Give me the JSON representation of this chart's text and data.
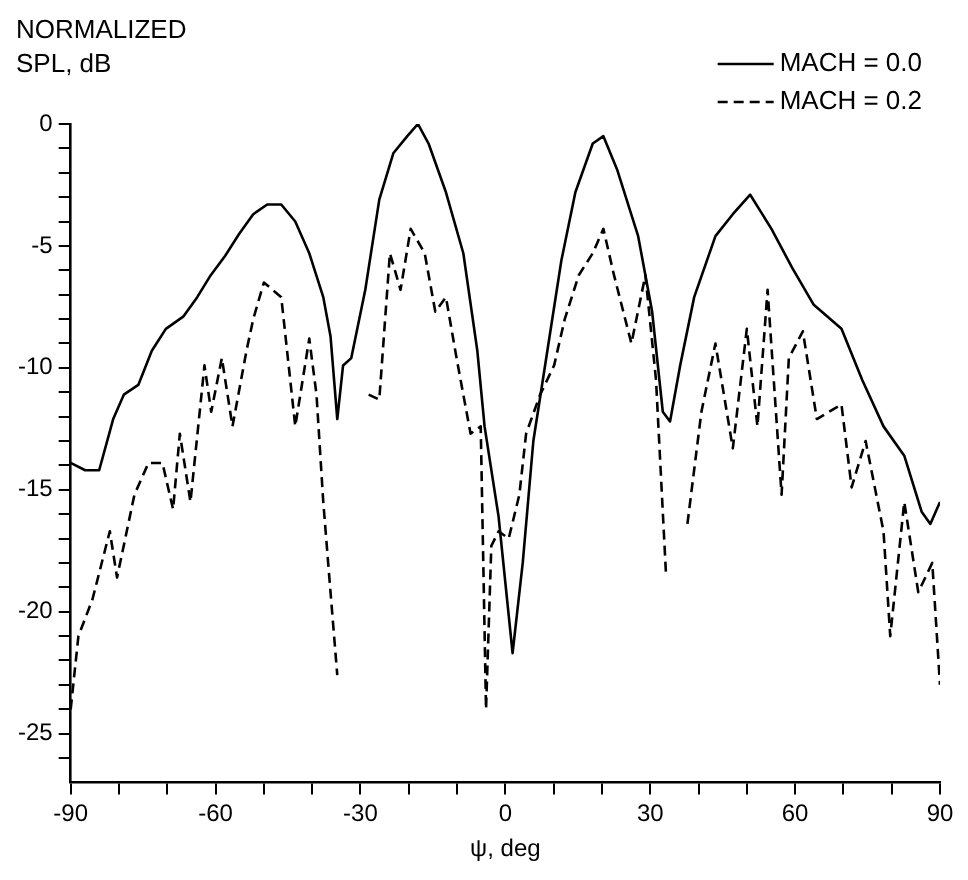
{
  "chart_data": {
    "type": "line",
    "ylabel": "NORMALIZED SPL, dB",
    "xlabel": "ψ, deg",
    "xlim": [
      -90,
      90
    ],
    "ylim": [
      -27,
      0
    ],
    "xticks": [
      -90,
      {
        "value": -80,
        "label": null
      },
      {
        "value": -70,
        "label": null
      },
      -60,
      {
        "value": -50,
        "label": null
      },
      {
        "value": -40,
        "label": null
      },
      -30,
      {
        "value": -20,
        "label": null
      },
      {
        "value": -10,
        "label": null
      },
      0,
      {
        "value": 10,
        "label": null
      },
      {
        "value": 20,
        "label": null
      },
      30,
      {
        "value": 40,
        "label": null
      },
      {
        "value": 50,
        "label": null
      },
      60,
      {
        "value": 70,
        "label": null
      },
      {
        "value": 80,
        "label": null
      },
      90
    ],
    "yticks": [
      0,
      {
        "value": -1,
        "label": null
      },
      {
        "value": -2,
        "label": null
      },
      {
        "value": -3,
        "label": null
      },
      {
        "value": -4,
        "label": null
      },
      -5,
      {
        "value": -6,
        "label": null
      },
      {
        "value": -7,
        "label": null
      },
      {
        "value": -8,
        "label": null
      },
      {
        "value": -9,
        "label": null
      },
      -10,
      {
        "value": -11,
        "label": null
      },
      {
        "value": -12,
        "label": null
      },
      {
        "value": -13,
        "label": null
      },
      {
        "value": -14,
        "label": null
      },
      -15,
      {
        "value": -16,
        "label": null
      },
      {
        "value": -17,
        "label": null
      },
      {
        "value": -18,
        "label": null
      },
      {
        "value": -19,
        "label": null
      },
      -20,
      {
        "value": -21,
        "label": null
      },
      {
        "value": -22,
        "label": null
      },
      {
        "value": -23,
        "label": null
      },
      {
        "value": -24,
        "label": null
      },
      -25,
      {
        "value": -26,
        "label": null
      }
    ],
    "grid": false,
    "legend": "top right",
    "marker": "none",
    "series": [
      {
        "name": "MACH = 0.0",
        "color": "#000000",
        "line_style": "solid",
        "x": [
          -90,
          -87,
          -84.1,
          -81.2,
          -79,
          -76,
          -73.2,
          -70.3,
          -66.7,
          -63.8,
          -61,
          -58,
          -55.1,
          -52.2,
          -49.3,
          -46.4,
          -43.5,
          -40.6,
          -37.7,
          -36.2,
          -34.8,
          -33.6,
          -31.9,
          -29,
          -26.1,
          -23.2,
          -20.3,
          -18.1,
          -15.9,
          -12.3,
          -8.7,
          -5.8,
          -4.3,
          -1.4,
          1.5,
          3.6,
          5.8,
          8.7,
          11.6,
          14.5,
          18.1,
          20.3,
          23.2,
          27.5,
          30.4,
          32.6,
          34.1,
          36.2,
          39.1,
          43.5,
          47.1,
          50.7,
          55.1,
          59.4,
          63.8,
          69.6,
          73.9,
          78.3,
          82.6,
          86.2,
          88,
          90
        ],
        "values": [
          -13.9,
          -14.2,
          -14.2,
          -12.1,
          -11.1,
          -10.7,
          -9.3,
          -8.4,
          -7.9,
          -7.1,
          -6.2,
          -5.4,
          -4.5,
          -3.7,
          -3.3,
          -3.3,
          -4,
          -5.3,
          -7.1,
          -8.7,
          -12.1,
          -9.9,
          -9.6,
          -6.8,
          -3.1,
          -1.2,
          -0.5,
          0,
          -0.8,
          -2.8,
          -5.3,
          -9.3,
          -12.4,
          -16.1,
          -21.7,
          -18,
          -13,
          -9.3,
          -5.6,
          -2.8,
          -0.8,
          -0.5,
          -1.9,
          -4.6,
          -7.7,
          -11.8,
          -12.2,
          -9.9,
          -7.1,
          -4.6,
          -3.7,
          -2.9,
          -4.3,
          -5.9,
          -7.4,
          -8.4,
          -10.5,
          -12.4,
          -13.6,
          -15.9,
          -16.4,
          -15.5
        ]
      },
      {
        "name": "MACH = 0.2",
        "color": "#000000",
        "line_style": "dashed",
        "x": [
          -90,
          -88.4,
          -85.5,
          -81.9,
          -80.4,
          -76.8,
          -73.9,
          -71,
          -68.8,
          -67.4,
          -65.2,
          -62.3,
          -60.9,
          -58.7,
          -56.5,
          -53.6,
          -52.2,
          -50,
          -46.4,
          -43.5,
          -40.6,
          -39.1,
          -37.7,
          -36.2,
          -34.8,
          -32.5,
          -31,
          -28.3,
          -26.1,
          -23.9,
          -21.7,
          -19.6,
          -16.7,
          -14.5,
          -12.3,
          -10.1,
          -7.2,
          -5.1,
          -4,
          -2.9,
          -1.4,
          0.7,
          2.9,
          4.3,
          7.2,
          10.1,
          12.3,
          15.2,
          18.1,
          20.3,
          22.5,
          26.1,
          29,
          31.2,
          33.3,
          34.5,
          37.7,
          40.6,
          43.5,
          47.1,
          50,
          52.2,
          54.3,
          57.2,
          58.7,
          61.6,
          64.5,
          69.6,
          71.7,
          74.6,
          78.3,
          79.7,
          82.6,
          85.5,
          88.4,
          90
        ],
        "values": [
          -24,
          -21,
          -19.5,
          -16.7,
          -18.6,
          -15.2,
          -13.9,
          -13.9,
          -15.8,
          -12.7,
          -15.5,
          -9.9,
          -11.8,
          -9.6,
          -12.4,
          -9.3,
          -8,
          -6.5,
          -7.1,
          -12.4,
          -8.8,
          -11.1,
          -15.5,
          -19.2,
          -22.6,
          null,
          null,
          -11.1,
          -11.3,
          -5.3,
          -6.8,
          -4.3,
          -5.3,
          -7.7,
          -7.1,
          -9.6,
          -12.7,
          -12.4,
          -24,
          -17.3,
          -16.7,
          -17,
          -15.2,
          -12.7,
          -11.1,
          -9.9,
          -8,
          -6.2,
          -5.3,
          -4.3,
          -6.2,
          -9,
          -6.2,
          -10.5,
          -18.6,
          null,
          -16.4,
          -11.8,
          -9,
          -13.3,
          -8.4,
          -12.4,
          -6.8,
          -15.2,
          -9.6,
          -8.5,
          -12.1,
          -11.5,
          -14.9,
          -13,
          -16.7,
          -21,
          -15.5,
          -19.2,
          -18,
          -23
        ]
      }
    ]
  }
}
